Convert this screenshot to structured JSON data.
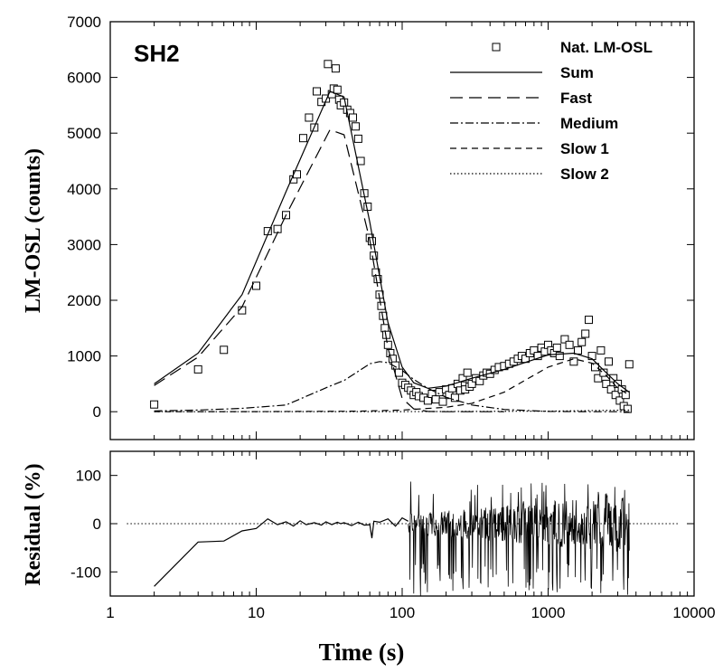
{
  "chart_data": [
    {
      "id": "main",
      "type": "scatter+line",
      "panel_label": "SH2",
      "ylabel": "LM-OSL (counts)",
      "xscale": "log",
      "xlim": [
        1,
        10000
      ],
      "ylim": [
        -500,
        7000
      ],
      "yticks": [
        0,
        1000,
        2000,
        3000,
        4000,
        5000,
        6000,
        7000
      ],
      "legend_position": "top-right",
      "series": [
        {
          "name": "Nat. LM-OSL",
          "style": "open-square",
          "x": [
            2,
            4,
            6,
            8,
            10,
            12,
            14,
            16,
            18,
            19,
            21,
            23,
            25,
            26,
            28,
            30,
            31,
            33,
            34,
            35,
            36,
            37,
            38,
            40,
            42,
            44,
            46,
            48,
            50,
            52,
            55,
            58,
            60,
            62,
            64,
            66,
            68,
            70,
            72,
            74,
            76,
            78,
            80,
            83,
            86,
            90,
            95,
            100,
            105,
            110,
            115,
            120,
            125,
            130,
            140,
            150,
            160,
            170,
            180,
            190,
            200,
            210,
            220,
            230,
            240,
            250,
            260,
            270,
            280,
            290,
            300,
            320,
            340,
            360,
            380,
            400,
            430,
            460,
            500,
            540,
            580,
            620,
            660,
            700,
            750,
            800,
            850,
            900,
            950,
            1000,
            1050,
            1100,
            1150,
            1200,
            1300,
            1400,
            1500,
            1600,
            1700,
            1800,
            1900,
            2000,
            2100,
            2200,
            2300,
            2400,
            2500,
            2600,
            2700,
            2800,
            2900,
            3000,
            3100,
            3200,
            3300,
            3400,
            3500,
            3600
          ],
          "y": [
            130,
            760,
            1110,
            1820,
            2260,
            3240,
            3280,
            3530,
            4170,
            4260,
            4910,
            5280,
            5100,
            5750,
            5560,
            5620,
            6240,
            5700,
            5800,
            6160,
            5780,
            5600,
            5500,
            5550,
            5420,
            5360,
            5280,
            5120,
            4900,
            4500,
            3920,
            3680,
            3120,
            3060,
            2800,
            2500,
            2380,
            2100,
            1900,
            1720,
            1500,
            1380,
            1200,
            1050,
            950,
            830,
            700,
            520,
            480,
            430,
            380,
            300,
            350,
            280,
            250,
            200,
            320,
            220,
            350,
            180,
            400,
            300,
            420,
            250,
            500,
            380,
            600,
            400,
            700,
            450,
            500,
            600,
            550,
            650,
            700,
            680,
            750,
            800,
            820,
            860,
            900,
            950,
            1000,
            950,
            1050,
            1100,
            1000,
            1150,
            1080,
            1200,
            1100,
            1050,
            1150,
            1000,
            1300,
            1200,
            900,
            1100,
            1250,
            1400,
            1650,
            1000,
            800,
            600,
            1100,
            700,
            500,
            900,
            400,
            600,
            300,
            500,
            200,
            400,
            100,
            300,
            50,
            850
          ]
        },
        {
          "name": "Sum",
          "style": "solid",
          "x": [
            2,
            4,
            8,
            16,
            32,
            40,
            60,
            80,
            100,
            120,
            150,
            200,
            300,
            500,
            1000,
            1500,
            2000,
            2500,
            3000,
            3600
          ],
          "y": [
            500,
            1050,
            2100,
            3950,
            5750,
            5650,
            3400,
            1600,
            800,
            520,
            420,
            460,
            600,
            760,
            1020,
            1050,
            950,
            700,
            500,
            350
          ]
        },
        {
          "name": "Fast",
          "style": "long-dash",
          "x": [
            2,
            4,
            8,
            16,
            32,
            40,
            60,
            80,
            100,
            120,
            150,
            200,
            300,
            500
          ],
          "y": [
            470,
            980,
            1880,
            3530,
            5060,
            4970,
            3080,
            1140,
            240,
            50,
            5,
            0,
            0,
            0
          ]
        },
        {
          "name": "Medium",
          "style": "dash-dot",
          "x": [
            2,
            4,
            8,
            16,
            32,
            40,
            60,
            70,
            80,
            100,
            120,
            150,
            200,
            300,
            500,
            1000,
            2000,
            3600
          ],
          "y": [
            15,
            30,
            60,
            120,
            460,
            560,
            860,
            900,
            880,
            740,
            580,
            420,
            260,
            120,
            40,
            5,
            0,
            0
          ]
        },
        {
          "name": "Slow 1",
          "style": "medium-dash",
          "x": [
            2,
            10,
            50,
            100,
            200,
            300,
            500,
            1000,
            1500,
            2000,
            2500,
            3000,
            3600
          ],
          "y": [
            0,
            2,
            10,
            30,
            80,
            150,
            350,
            800,
            950,
            870,
            650,
            420,
            300
          ]
        },
        {
          "name": "Slow 2",
          "style": "dotted",
          "x": [
            2,
            100,
            1000,
            3600
          ],
          "y": [
            0,
            2,
            10,
            30
          ]
        }
      ]
    },
    {
      "id": "residual",
      "type": "line",
      "ylabel": "Residual (%)",
      "xlabel": "Time (s)",
      "xscale": "log",
      "xlim": [
        1,
        10000
      ],
      "ylim": [
        -150,
        150
      ],
      "yticks": [
        -100,
        0,
        100
      ],
      "xticks": [
        1,
        10,
        100,
        1000,
        10000
      ],
      "xtick_labels": [
        "1",
        "10",
        "100",
        "1000",
        "10000"
      ],
      "series": [
        {
          "name": "Residual",
          "style": "solid",
          "x": [
            2,
            4,
            6,
            8,
            10,
            12,
            14,
            16,
            18,
            20,
            22,
            25,
            28,
            30,
            33,
            36,
            38,
            40,
            45,
            50,
            55,
            60,
            62,
            64,
            70,
            80,
            90,
            100,
            110
          ],
          "y": [
            -130,
            -38,
            -36,
            -15,
            -10,
            10,
            -2,
            4,
            -5,
            6,
            -2,
            2,
            -3,
            4,
            -2,
            3,
            0,
            2,
            -4,
            3,
            -3,
            -2,
            -30,
            5,
            3,
            10,
            -5,
            12,
            5
          ]
        },
        {
          "name": "Zero",
          "style": "dotted",
          "x": [
            1.3,
            8000
          ],
          "y": [
            0,
            0
          ]
        }
      ],
      "noise_region": {
        "x_range": [
          110,
          3600
        ],
        "lower": -150,
        "upper": 90
      }
    }
  ]
}
